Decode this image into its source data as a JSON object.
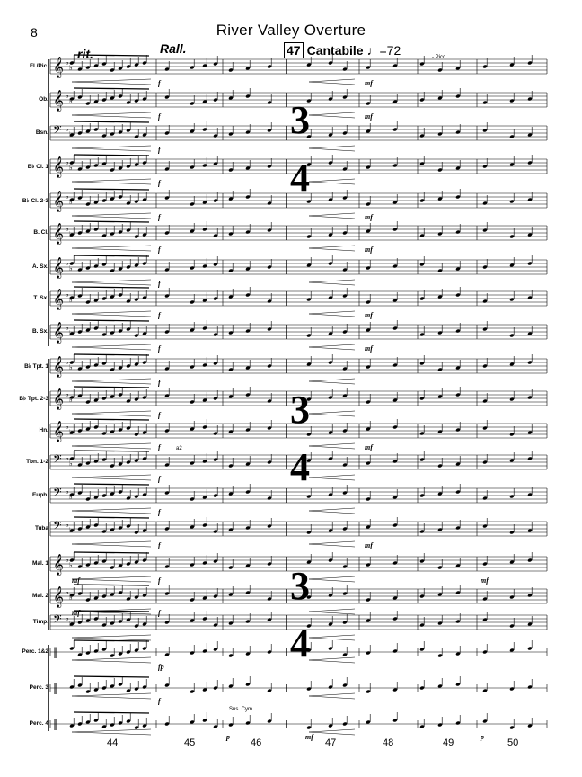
{
  "header": {
    "page_number": "8",
    "title": "River Valley Overture"
  },
  "markings": {
    "rit": "rit.",
    "rall": "Rall.",
    "rehearsal_number": "47",
    "tempo_text": "Cantabile",
    "metronome": "=72",
    "time_signature_top": "3",
    "time_signature_bottom": "4",
    "picc_cue": "- Picc.",
    "a2": "a2",
    "sus_cym": "Sus. Cym."
  },
  "instruments": [
    {
      "label": "Fl./Pic.",
      "clef": "treble"
    },
    {
      "label": "Ob.",
      "clef": "treble"
    },
    {
      "label": "Bsn.",
      "clef": "bass"
    },
    {
      "label": "B♭ Cl. 1",
      "clef": "treble"
    },
    {
      "label": "B♭ Cl. 2-3",
      "clef": "treble"
    },
    {
      "label": "B. Cl.",
      "clef": "treble"
    },
    {
      "label": "A. Sx.",
      "clef": "treble"
    },
    {
      "label": "T. Sx.",
      "clef": "treble"
    },
    {
      "label": "B. Sx.",
      "clef": "treble"
    },
    {
      "label": "B♭ Tpt. 1",
      "clef": "treble"
    },
    {
      "label": "B♭ Tpt. 2-3",
      "clef": "treble"
    },
    {
      "label": "Hn.",
      "clef": "treble"
    },
    {
      "label": "Tbn. 1-2",
      "clef": "bass"
    },
    {
      "label": "Euph.",
      "clef": "bass"
    },
    {
      "label": "Tuba",
      "clef": "bass"
    },
    {
      "label": "Mal. 1",
      "clef": "treble"
    },
    {
      "label": "Mal. 2",
      "clef": "treble"
    },
    {
      "label": "Timp.",
      "clef": "bass"
    },
    {
      "label": "Perc. 1&2",
      "clef": "perc"
    },
    {
      "label": "Perc. 3",
      "clef": "perc"
    },
    {
      "label": "Perc. 4",
      "clef": "perc"
    }
  ],
  "dynamics": {
    "f": "f",
    "mf": "mf",
    "fp": "fp",
    "p": "p"
  },
  "measure_numbers": [
    "44",
    "45",
    "46",
    "47",
    "48",
    "49",
    "50"
  ]
}
